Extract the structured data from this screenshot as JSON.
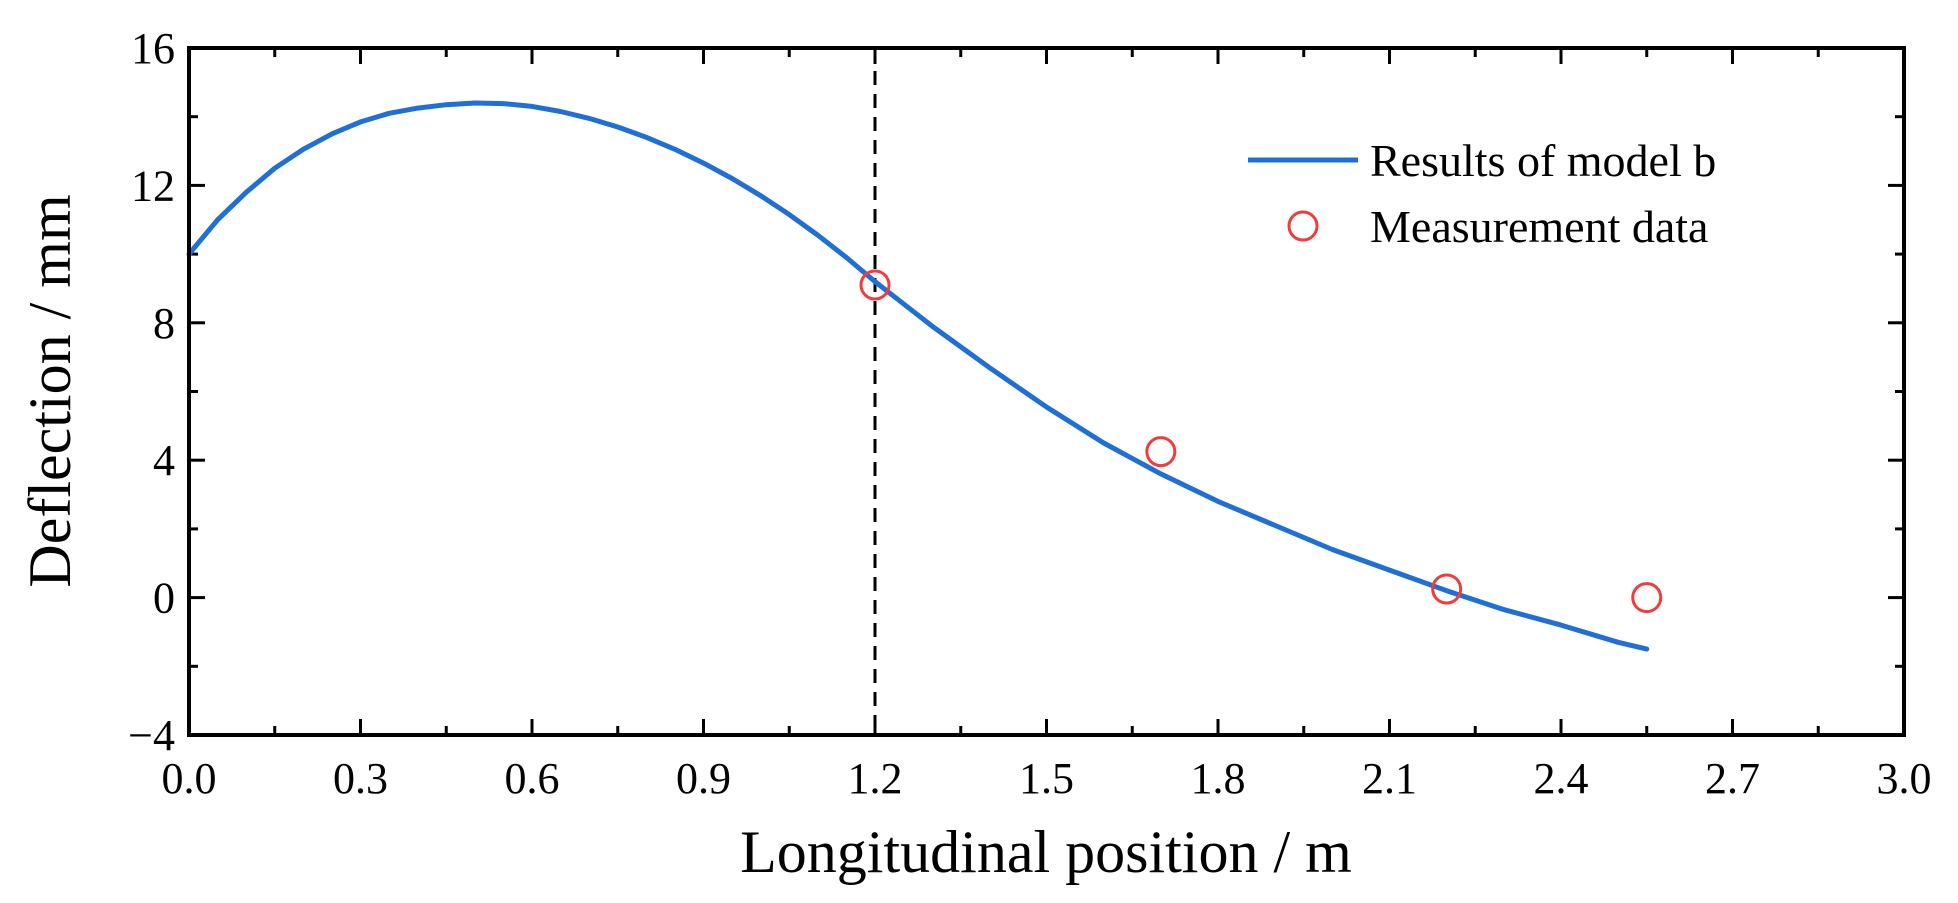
{
  "chart_data": {
    "type": "line",
    "title": "",
    "xlabel": "Longitudinal position / m",
    "ylabel": "Deflection / mm",
    "xlim": [
      0.0,
      3.0
    ],
    "ylim": [
      -4,
      16
    ],
    "x_ticks": [
      0.0,
      0.3,
      0.6,
      0.9,
      1.2,
      1.5,
      1.8,
      2.1,
      2.4,
      2.7,
      3.0
    ],
    "x_tick_labels": [
      "0.0",
      "0.3",
      "0.6",
      "0.9",
      "1.2",
      "1.5",
      "1.8",
      "2.1",
      "2.4",
      "2.7",
      "3.0"
    ],
    "x_minor_ticks": [
      0.15,
      0.45,
      0.75,
      1.05,
      1.35,
      1.65,
      1.95,
      2.25,
      2.55,
      2.85
    ],
    "y_ticks": [
      -4,
      0,
      4,
      8,
      12,
      16
    ],
    "y_tick_labels": [
      "−4",
      "0",
      "4",
      "8",
      "12",
      "16"
    ],
    "y_minor_ticks": [
      -2,
      2,
      6,
      10,
      14
    ],
    "grid": false,
    "legend_position": "top-right",
    "colors": {
      "model_line": "#1f6fd6",
      "measurement_marker": "#f03c3c",
      "reference_line": "#000000",
      "axes": "#000000"
    },
    "reference_line": {
      "x": 1.2,
      "style": "dashed"
    },
    "series": [
      {
        "name": "Results of model b",
        "kind": "line",
        "x": [
          0.0,
          0.05,
          0.1,
          0.15,
          0.2,
          0.25,
          0.3,
          0.35,
          0.4,
          0.45,
          0.5,
          0.55,
          0.6,
          0.65,
          0.7,
          0.75,
          0.8,
          0.85,
          0.9,
          0.95,
          1.0,
          1.05,
          1.1,
          1.15,
          1.2,
          1.3,
          1.4,
          1.5,
          1.6,
          1.7,
          1.8,
          1.9,
          2.0,
          2.1,
          2.2,
          2.3,
          2.4,
          2.5,
          2.55
        ],
        "y": [
          10.0,
          11.0,
          11.8,
          12.5,
          13.05,
          13.5,
          13.85,
          14.1,
          14.25,
          14.35,
          14.4,
          14.38,
          14.3,
          14.15,
          13.95,
          13.7,
          13.4,
          13.05,
          12.65,
          12.2,
          11.7,
          11.15,
          10.55,
          9.9,
          9.2,
          7.9,
          6.7,
          5.55,
          4.5,
          3.6,
          2.8,
          2.1,
          1.4,
          0.8,
          0.2,
          -0.35,
          -0.8,
          -1.3,
          -1.5
        ]
      },
      {
        "name": "Measurement data",
        "kind": "scatter",
        "x": [
          1.2,
          1.7,
          2.2,
          2.55
        ],
        "y": [
          9.1,
          4.25,
          0.25,
          0.0
        ]
      }
    ]
  }
}
